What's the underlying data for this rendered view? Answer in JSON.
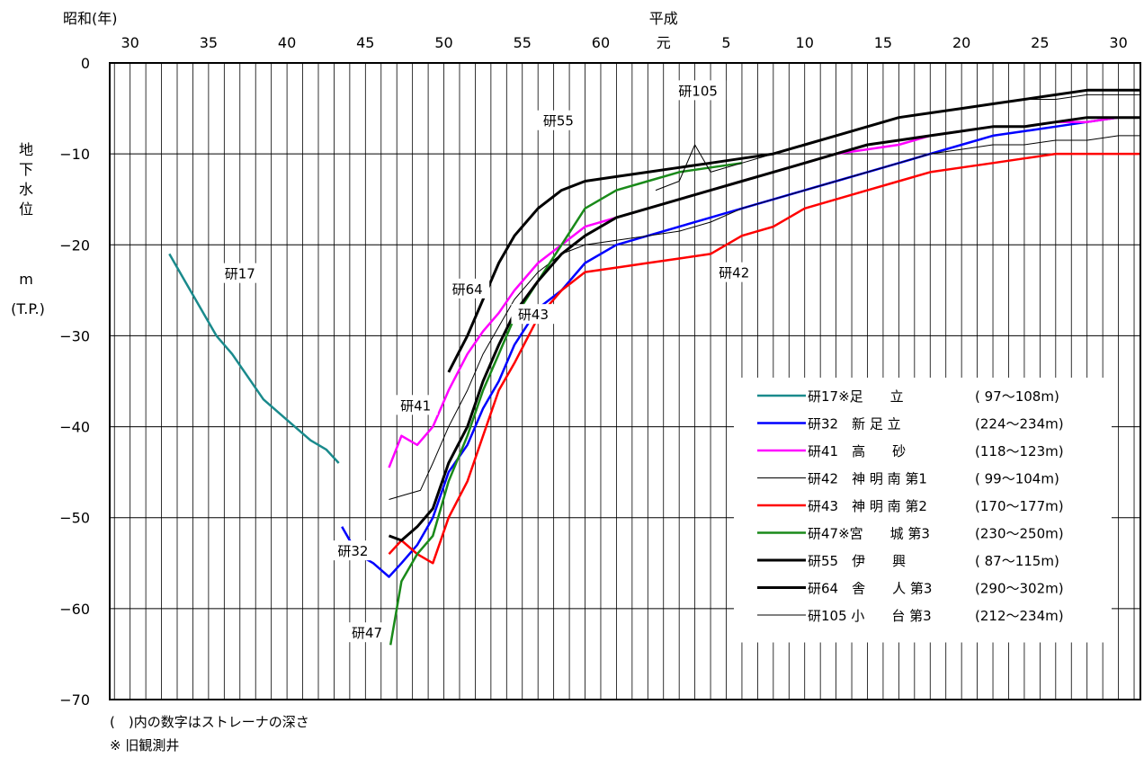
{
  "chart_data": {
    "type": "line",
    "era_label_showa": "昭和(年)",
    "era_label_heisei": "平成",
    "x_ticks_showa": [
      "30",
      "35",
      "40",
      "45",
      "50",
      "55",
      "60"
    ],
    "x_ticks_heisei": [
      "元",
      "5",
      "10",
      "15",
      "20",
      "25",
      "30"
    ],
    "ylabel_chars": [
      "地",
      "下",
      "水",
      "位"
    ],
    "ylabel_unit": "m",
    "ylabel_ref": "(T.P.)",
    "y_ticks": [
      "0",
      "−10",
      "−20",
      "−30",
      "−40",
      "−50",
      "−60",
      "−70"
    ],
    "ylim": [
      -70,
      0
    ],
    "xlim": [
      1953.7,
      2019.4
    ],
    "grid": true,
    "legend_position": "right-center",
    "series": [
      {
        "name": "研17",
        "legend": "研17※足　　立",
        "depth": "( 97～108m)",
        "color": "#1a8a8c",
        "width": 2.5,
        "label": "研17",
        "points": [
          [
            1957.5,
            -21
          ],
          [
            1958.5,
            -24
          ],
          [
            1959.5,
            -27
          ],
          [
            1960.5,
            -30
          ],
          [
            1961.5,
            -32
          ],
          [
            1962.5,
            -34.5
          ],
          [
            1963.5,
            -37
          ],
          [
            1964.5,
            -38.5
          ],
          [
            1965.5,
            -40
          ],
          [
            1966.5,
            -41.5
          ],
          [
            1967.5,
            -42.5
          ],
          [
            1968.3,
            -44
          ]
        ]
      },
      {
        "name": "研32",
        "legend": "研32　新 足 立",
        "depth": "(224～234m)",
        "color": "#0000ff",
        "width": 2.5,
        "label": "研32",
        "points": [
          [
            1968.5,
            -51
          ],
          [
            1969.5,
            -54
          ],
          [
            1970.5,
            -55
          ],
          [
            1971.5,
            -56.5
          ],
          [
            1972.3,
            -55
          ],
          [
            1973.3,
            -53
          ],
          [
            1974.3,
            -50
          ],
          [
            1975.3,
            -45
          ],
          [
            1976.5,
            -42
          ],
          [
            1977.5,
            -38
          ],
          [
            1978.5,
            -35
          ],
          [
            1979.5,
            -31
          ],
          [
            1981,
            -27
          ],
          [
            1982.5,
            -25
          ],
          [
            1984,
            -22
          ],
          [
            1986,
            -20
          ],
          [
            1988,
            -19
          ],
          [
            1990,
            -18
          ],
          [
            1992,
            -17
          ],
          [
            1994,
            -16
          ],
          [
            1996,
            -15
          ],
          [
            1998,
            -14
          ],
          [
            2000,
            -13
          ],
          [
            2002,
            -12
          ],
          [
            2004,
            -11
          ],
          [
            2006,
            -10
          ],
          [
            2008,
            -9
          ],
          [
            2010,
            -8
          ],
          [
            2012,
            -7.5
          ],
          [
            2014,
            -7
          ],
          [
            2016,
            -6.5
          ],
          [
            2018,
            -6
          ],
          [
            2019.4,
            -6
          ]
        ]
      },
      {
        "name": "研41",
        "legend": "研41　高　　砂",
        "depth": "(118～123m)",
        "color": "#ff00ff",
        "width": 2.5,
        "label": "研41",
        "points": [
          [
            1971.5,
            -44.5
          ],
          [
            1972.3,
            -41
          ],
          [
            1973.3,
            -42
          ],
          [
            1974.3,
            -40
          ],
          [
            1975.3,
            -36
          ],
          [
            1976.5,
            -32
          ],
          [
            1977.5,
            -29.5
          ],
          [
            1978.5,
            -27.5
          ],
          [
            1979.5,
            -25
          ],
          [
            1981,
            -22
          ],
          [
            1982.5,
            -20
          ],
          [
            1984,
            -18
          ],
          [
            1986,
            -17
          ],
          [
            1988,
            -16
          ],
          [
            1990,
            -15
          ],
          [
            1992,
            -14
          ],
          [
            1994,
            -13
          ],
          [
            1996,
            -12
          ],
          [
            1998,
            -11
          ],
          [
            2000,
            -10
          ],
          [
            2002,
            -9.5
          ],
          [
            2004,
            -9
          ],
          [
            2006,
            -8
          ],
          [
            2008,
            -7.5
          ],
          [
            2010,
            -7
          ],
          [
            2012,
            -7
          ],
          [
            2014,
            -6.5
          ],
          [
            2016,
            -6.5
          ],
          [
            2018,
            -6
          ],
          [
            2019.4,
            -6
          ]
        ]
      },
      {
        "name": "研42",
        "legend": "研42　神 明 南 第1",
        "depth": "( 99～104m)",
        "color": "#000000",
        "width": 1,
        "label": "研42",
        "points": [
          [
            1971.5,
            -48
          ],
          [
            1972.5,
            -47.5
          ],
          [
            1973.5,
            -47
          ],
          [
            1974.3,
            -44
          ],
          [
            1975.3,
            -40
          ],
          [
            1976.5,
            -36
          ],
          [
            1977.5,
            -32
          ],
          [
            1978.5,
            -29
          ],
          [
            1979.5,
            -26
          ],
          [
            1981,
            -23
          ],
          [
            1982.5,
            -21
          ],
          [
            1984,
            -20
          ],
          [
            1986,
            -19.5
          ],
          [
            1988,
            -19
          ],
          [
            1990,
            -18.5
          ],
          [
            1992,
            -17.5
          ],
          [
            1994,
            -16
          ],
          [
            1996,
            -15
          ],
          [
            1998,
            -14
          ],
          [
            2000,
            -13
          ],
          [
            2002,
            -12
          ],
          [
            2004,
            -11
          ],
          [
            2006,
            -10
          ],
          [
            2008,
            -9.5
          ],
          [
            2010,
            -9
          ],
          [
            2012,
            -9
          ],
          [
            2014,
            -8.5
          ],
          [
            2016,
            -8.5
          ],
          [
            2018,
            -8
          ],
          [
            2019.4,
            -8
          ]
        ]
      },
      {
        "name": "研43",
        "legend": "研43　神 明 南 第2",
        "depth": "(170～177m)",
        "color": "#ff0000",
        "width": 2.5,
        "label": "研43",
        "points": [
          [
            1971.5,
            -54
          ],
          [
            1972.3,
            -52.5
          ],
          [
            1973.3,
            -54
          ],
          [
            1974.3,
            -55
          ],
          [
            1975.3,
            -50
          ],
          [
            1976.5,
            -46
          ],
          [
            1977.5,
            -41
          ],
          [
            1978.5,
            -36
          ],
          [
            1979.5,
            -33
          ],
          [
            1981,
            -28
          ],
          [
            1982.5,
            -25
          ],
          [
            1984,
            -23
          ],
          [
            1986,
            -22.5
          ],
          [
            1988,
            -22
          ],
          [
            1990,
            -21.5
          ],
          [
            1992,
            -21
          ],
          [
            1994,
            -19
          ],
          [
            1996,
            -18
          ],
          [
            1998,
            -16
          ],
          [
            2000,
            -15
          ],
          [
            2002,
            -14
          ],
          [
            2004,
            -13
          ],
          [
            2006,
            -12
          ],
          [
            2008,
            -11.5
          ],
          [
            2010,
            -11
          ],
          [
            2012,
            -10.5
          ],
          [
            2014,
            -10
          ],
          [
            2016,
            -10
          ],
          [
            2018,
            -10
          ],
          [
            2019.4,
            -10
          ]
        ]
      },
      {
        "name": "研47",
        "legend": "研47※宮　　城 第3",
        "depth": "(230～250m)",
        "color": "#1a8a1a",
        "width": 2.5,
        "label": "研47",
        "points": [
          [
            1971.6,
            -64
          ],
          [
            1972.3,
            -57
          ],
          [
            1973.3,
            -54
          ],
          [
            1974.3,
            -52
          ],
          [
            1975.3,
            -46
          ],
          [
            1976.5,
            -41
          ],
          [
            1977.5,
            -36
          ],
          [
            1978.5,
            -32
          ],
          [
            1979.5,
            -28
          ],
          [
            1981,
            -24
          ],
          [
            1982.5,
            -20
          ],
          [
            1984,
            -16
          ],
          [
            1986,
            -14
          ],
          [
            1988,
            -13
          ],
          [
            1990,
            -12
          ],
          [
            1992,
            -11.5
          ],
          [
            1994,
            -11
          ]
        ]
      },
      {
        "name": "研55",
        "legend": "研55　伊　　興",
        "depth": "( 87～115m)",
        "color": "#000000",
        "width": 3,
        "label": "研55",
        "points": [
          [
            1971.5,
            -52
          ],
          [
            1972.3,
            -52.5
          ],
          [
            1973.3,
            -51
          ],
          [
            1974.3,
            -49
          ],
          [
            1975.3,
            -44
          ],
          [
            1976.5,
            -40
          ],
          [
            1977.5,
            -35
          ],
          [
            1978.5,
            -31
          ],
          [
            1979.5,
            -27.5
          ],
          [
            1981,
            -24
          ],
          [
            1982.5,
            -21
          ],
          [
            1984,
            -19
          ],
          [
            1986,
            -17
          ],
          [
            1988,
            -16
          ],
          [
            1990,
            -15
          ],
          [
            1992,
            -14
          ],
          [
            1994,
            -13
          ],
          [
            1996,
            -12
          ],
          [
            1998,
            -11
          ],
          [
            2000,
            -10
          ],
          [
            2002,
            -9
          ],
          [
            2004,
            -8.5
          ],
          [
            2006,
            -8
          ],
          [
            2008,
            -7.5
          ],
          [
            2010,
            -7
          ],
          [
            2012,
            -7
          ],
          [
            2014,
            -6.5
          ],
          [
            2016,
            -6
          ],
          [
            2018,
            -6
          ],
          [
            2019.4,
            -6
          ]
        ]
      },
      {
        "name": "研64",
        "legend": "研64　舎　　人 第3",
        "depth": "(290～302m)",
        "color": "#000000",
        "width": 3,
        "label": "研64",
        "points": [
          [
            1975.3,
            -34
          ],
          [
            1976.5,
            -30
          ],
          [
            1977.5,
            -26
          ],
          [
            1978.5,
            -22
          ],
          [
            1979.5,
            -19
          ],
          [
            1981,
            -16
          ],
          [
            1982.5,
            -14
          ],
          [
            1984,
            -13
          ],
          [
            1986,
            -12.5
          ],
          [
            1988,
            -12
          ],
          [
            1990,
            -11.5
          ],
          [
            1992,
            -11
          ],
          [
            1994,
            -10.5
          ],
          [
            1996,
            -10
          ],
          [
            1998,
            -9
          ],
          [
            2000,
            -8
          ],
          [
            2002,
            -7
          ],
          [
            2004,
            -6
          ],
          [
            2006,
            -5.5
          ],
          [
            2008,
            -5
          ],
          [
            2010,
            -4.5
          ],
          [
            2012,
            -4
          ],
          [
            2014,
            -3.5
          ],
          [
            2016,
            -3
          ],
          [
            2018,
            -3
          ],
          [
            2019.4,
            -3
          ]
        ]
      },
      {
        "name": "研105",
        "legend": "研105 小　　台 第3",
        "depth": "(212～234m)",
        "color": "#000000",
        "width": 1,
        "label": "研105",
        "points": [
          [
            1988.5,
            -14
          ],
          [
            1990,
            -13
          ],
          [
            1991,
            -9
          ],
          [
            1992,
            -12
          ],
          [
            1994,
            -11
          ],
          [
            1996,
            -10
          ],
          [
            1998,
            -9
          ],
          [
            2000,
            -8
          ],
          [
            2002,
            -7
          ],
          [
            2004,
            -6
          ],
          [
            2006,
            -5.5
          ],
          [
            2008,
            -5
          ],
          [
            2010,
            -4.5
          ],
          [
            2012,
            -4
          ],
          [
            2014,
            -4
          ],
          [
            2016,
            -3.5
          ],
          [
            2018,
            -3.5
          ],
          [
            2019.4,
            -3.5
          ]
        ]
      }
    ]
  },
  "notes": {
    "depth_note": "(　)内の数字はストレーナの深さ",
    "old_well_note": "※ 旧観測井"
  }
}
